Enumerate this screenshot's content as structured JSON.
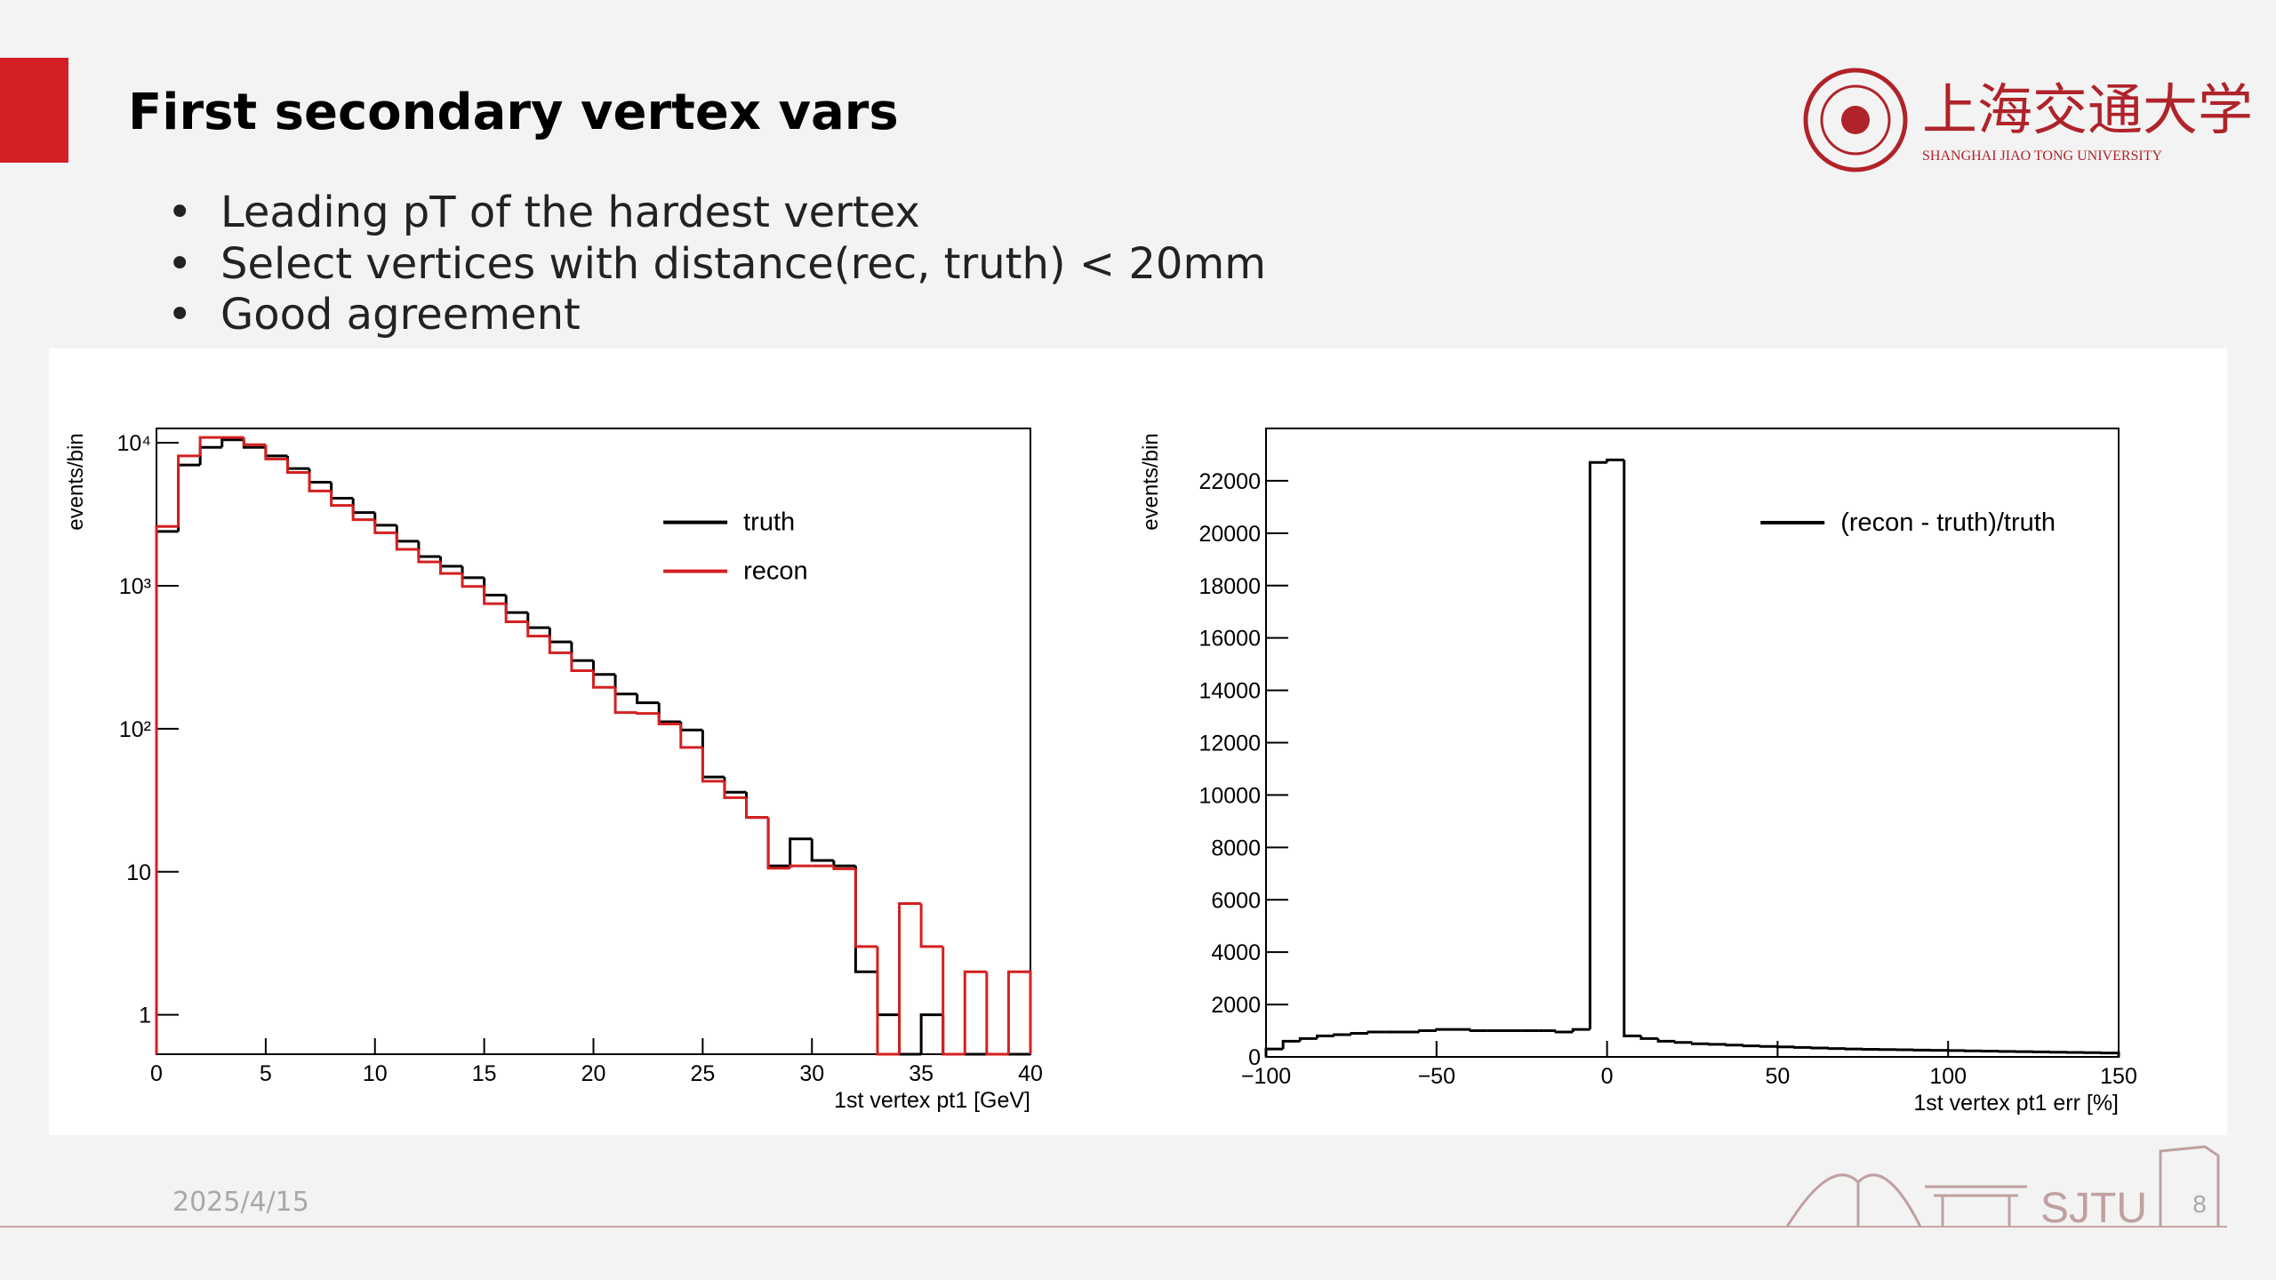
{
  "slide": {
    "title": "First secondary vertex vars",
    "bullets": [
      "Leading pT of the hardest vertex",
      "Select vertices with distance(rec, truth) < 20mm",
      "Good agreement"
    ],
    "date": "2025/4/15",
    "page_number": "8",
    "logo_name": "上海交通大学",
    "logo_subtitle": "SHANGHAI JIAO TONG UNIVERSITY",
    "footer_logo": "SJTU"
  },
  "chart_data": [
    {
      "type": "histogram",
      "x_label": "1st vertex pt1 [GeV]",
      "y_label": "events/bin",
      "bins": [
        0,
        1,
        2,
        3,
        4,
        5,
        6,
        7,
        8,
        9,
        10,
        11,
        12,
        13,
        14,
        15,
        16,
        17,
        18,
        19,
        20,
        21,
        22,
        23,
        24,
        25,
        26,
        27,
        28,
        29,
        30,
        31,
        32,
        33,
        34,
        35,
        36,
        37,
        38,
        39,
        40
      ],
      "series": [
        {
          "name": "truth",
          "color": "#000000",
          "values": [
            2400,
            7000,
            9300,
            10500,
            9300,
            8100,
            6600,
            5300,
            4100,
            3250,
            2650,
            2050,
            1600,
            1370,
            1140,
            860,
            650,
            510,
            405,
            300,
            240,
            175,
            152,
            112,
            98,
            46,
            36,
            24,
            11,
            17,
            12,
            11,
            2,
            1,
            0,
            1,
            0,
            0,
            0,
            0
          ]
        },
        {
          "name": "recon",
          "color": "#d42020",
          "values": [
            2600,
            8100,
            10900,
            10900,
            9700,
            7700,
            6200,
            4600,
            3650,
            2900,
            2350,
            1800,
            1470,
            1220,
            990,
            750,
            560,
            445,
            340,
            255,
            195,
            130,
            128,
            108,
            74,
            43,
            33,
            24,
            10.6,
            11,
            11,
            10.5,
            3,
            0,
            6,
            3,
            0,
            2,
            0,
            2
          ]
        }
      ],
      "xlim": [
        0,
        40
      ],
      "xticks": [
        0,
        5,
        10,
        15,
        20,
        25,
        30,
        35,
        40
      ],
      "ylim": [
        0.53,
        12600
      ],
      "log_y": true,
      "yticks": [
        1,
        10,
        {
          "value": 100,
          "label": "10²"
        },
        {
          "value": 1000,
          "label": "10³"
        },
        {
          "value": 10000,
          "label": "10⁴"
        }
      ],
      "legend": "upper right"
    },
    {
      "type": "histogram",
      "x_label": "1st vertex pt1 err [%]",
      "y_label": "events/bin",
      "bins": [
        -100,
        -95,
        -90,
        -85,
        -80,
        -75,
        -70,
        -65,
        -60,
        -55,
        -50,
        -45,
        -40,
        -35,
        -30,
        -25,
        -20,
        -15,
        -10,
        -5,
        0,
        5,
        10,
        15,
        20,
        25,
        30,
        35,
        40,
        45,
        50,
        55,
        60,
        65,
        70,
        75,
        80,
        85,
        90,
        95,
        100,
        105,
        110,
        115,
        120,
        125,
        130,
        135,
        140,
        145,
        150
      ],
      "series": [
        {
          "name": "(recon - truth)/truth",
          "color": "#000000",
          "values": [
            300,
            600,
            700,
            800,
            850,
            900,
            950,
            950,
            950,
            1000,
            1050,
            1050,
            1000,
            1000,
            1000,
            1000,
            1000,
            950,
            1050,
            22700,
            22800,
            800,
            700,
            600,
            550,
            500,
            480,
            450,
            420,
            400,
            380,
            360,
            340,
            320,
            300,
            290,
            280,
            270,
            260,
            250,
            240,
            230,
            220,
            210,
            200,
            190,
            180,
            170,
            160,
            150
          ]
        }
      ],
      "xlim": [
        -100,
        150
      ],
      "xticks": [
        {
          "value": -100,
          "label": "−100"
        },
        {
          "value": -50,
          "label": "−50"
        },
        0,
        50,
        100,
        150
      ],
      "ylim": [
        0,
        24000
      ],
      "log_y": false,
      "yticks": [
        0,
        2000,
        4000,
        6000,
        8000,
        10000,
        12000,
        14000,
        16000,
        18000,
        20000,
        22000
      ],
      "legend": "upper right"
    }
  ]
}
